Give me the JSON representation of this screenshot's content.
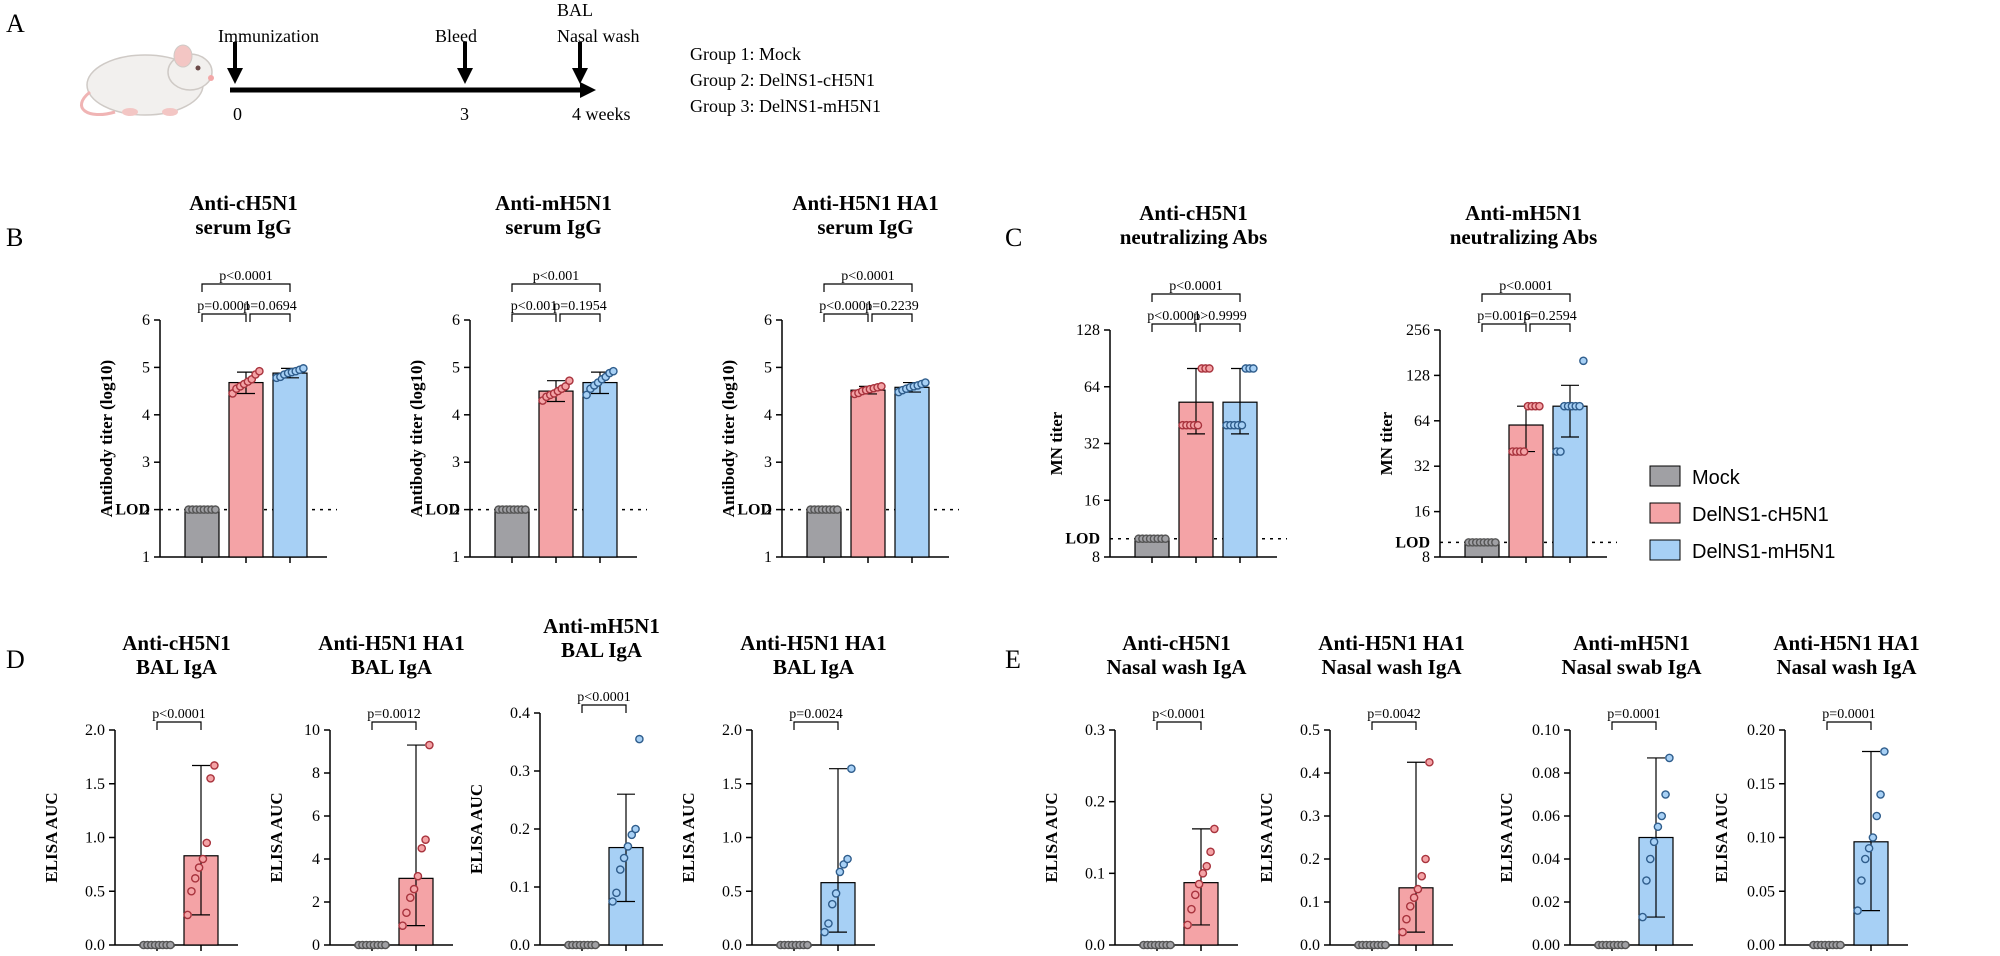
{
  "colors": {
    "mock": "#a0a0a4",
    "chN": "#f4a3a6",
    "mhN": "#a7d0f5",
    "dotMock": "#555555",
    "dotCH": "#a8333d",
    "dotMH": "#2f5d8c"
  },
  "panel_labels": {
    "A": "A",
    "B": "B",
    "C": "C",
    "D": "D",
    "E": "E"
  },
  "timeline": {
    "events": [
      "Immunization",
      "Bleed",
      "BAL",
      "Nasal wash"
    ],
    "ticks": [
      "0",
      "3",
      "4 weeks"
    ],
    "groups": [
      "Group 1: Mock",
      "Group 2: DelNS1-cH5N1",
      "Group 3: DelNS1-mH5N1"
    ]
  },
  "legend": [
    {
      "name": "Mock",
      "color": "#a0a0a4"
    },
    {
      "name": "DelNS1-cH5N1",
      "color": "#f4a3a6"
    },
    {
      "name": "DelNS1-mH5N1",
      "color": "#a7d0f5"
    }
  ],
  "chart_data": [
    {
      "type": "bar",
      "scale": "linear",
      "title": [
        "Anti-cH5N1",
        "serum IgG"
      ],
      "ylabel": "Antibody titer (log10)",
      "ylim": [
        1,
        6
      ],
      "yticks": [
        "1",
        "2",
        "3",
        "4",
        "5",
        "6"
      ],
      "lod": 2,
      "lod_label": "LOD",
      "bars": [
        {
          "group": "Mock",
          "mean": 2.0,
          "err": [
            2.0,
            2.0
          ],
          "points": [
            2,
            2,
            2,
            2,
            2,
            2,
            2,
            2
          ]
        },
        {
          "group": "DelNS1-cH5N1",
          "mean": 4.68,
          "err": [
            4.45,
            4.9
          ],
          "points": [
            4.45,
            4.55,
            4.6,
            4.65,
            4.7,
            4.75,
            4.85,
            4.92
          ]
        },
        {
          "group": "DelNS1-mH5N1",
          "mean": 4.88,
          "err": [
            4.78,
            4.98
          ],
          "points": [
            4.78,
            4.8,
            4.85,
            4.88,
            4.9,
            4.92,
            4.95,
            4.98
          ]
        }
      ],
      "pvals": [
        "p<0.0001",
        "p=0.0001",
        "p=0.0694"
      ]
    },
    {
      "type": "bar",
      "scale": "linear",
      "title": [
        "Anti-mH5N1",
        "serum IgG"
      ],
      "ylabel": "Antibody titer (log10)",
      "ylim": [
        1,
        6
      ],
      "yticks": [
        "1",
        "2",
        "3",
        "4",
        "5",
        "6"
      ],
      "lod": 2,
      "lod_label": "LOD",
      "bars": [
        {
          "group": "Mock",
          "mean": 2.0,
          "err": [
            2.0,
            2.0
          ],
          "points": [
            2,
            2,
            2,
            2,
            2,
            2,
            2,
            2
          ]
        },
        {
          "group": "DelNS1-cH5N1",
          "mean": 4.5,
          "err": [
            4.28,
            4.72
          ],
          "points": [
            4.3,
            4.38,
            4.42,
            4.45,
            4.5,
            4.55,
            4.6,
            4.72
          ]
        },
        {
          "group": "DelNS1-mH5N1",
          "mean": 4.68,
          "err": [
            4.45,
            4.9
          ],
          "points": [
            4.42,
            4.55,
            4.62,
            4.68,
            4.75,
            4.8,
            4.88,
            4.92
          ]
        }
      ],
      "pvals": [
        "p<0.001",
        "p<0.001",
        "p=0.1954"
      ]
    },
    {
      "type": "bar",
      "scale": "linear",
      "title": [
        "Anti-H5N1 HA1",
        "serum IgG"
      ],
      "ylabel": "Antibody titer (log10)",
      "ylim": [
        1,
        6
      ],
      "yticks": [
        "1",
        "2",
        "3",
        "4",
        "5",
        "6"
      ],
      "lod": 2,
      "lod_label": "LOD",
      "bars": [
        {
          "group": "Mock",
          "mean": 2.0,
          "err": [
            2.0,
            2.0
          ],
          "points": [
            2,
            2,
            2,
            2,
            2,
            2,
            2,
            2
          ]
        },
        {
          "group": "DelNS1-cH5N1",
          "mean": 4.52,
          "err": [
            4.44,
            4.6
          ],
          "points": [
            4.44,
            4.46,
            4.5,
            4.52,
            4.54,
            4.56,
            4.58,
            4.6
          ]
        },
        {
          "group": "DelNS1-mH5N1",
          "mean": 4.58,
          "err": [
            4.48,
            4.68
          ],
          "points": [
            4.48,
            4.52,
            4.55,
            4.58,
            4.6,
            4.62,
            4.65,
            4.68
          ]
        }
      ],
      "pvals": [
        "p<0.0001",
        "p<0.0001",
        "p=0.2239"
      ]
    },
    {
      "type": "bar",
      "scale": "log2",
      "title": [
        "Anti-cH5N1",
        "neutralizing Abs"
      ],
      "ylabel": "MN titer",
      "ylim": [
        8,
        128
      ],
      "yticks": [
        "8",
        "16",
        "32",
        "64",
        "128"
      ],
      "lod": 10,
      "lod_label": "LOD",
      "bars": [
        {
          "group": "Mock",
          "mean": 10,
          "err": [
            10,
            10
          ],
          "points": [
            10,
            10,
            10,
            10,
            10,
            10,
            10,
            10
          ]
        },
        {
          "group": "DelNS1-cH5N1",
          "mean": 53,
          "err": [
            36,
            80
          ],
          "points": [
            40,
            40,
            40,
            40,
            40,
            80,
            80,
            80
          ]
        },
        {
          "group": "DelNS1-mH5N1",
          "mean": 53,
          "err": [
            36,
            80
          ],
          "points": [
            40,
            40,
            40,
            40,
            40,
            80,
            80,
            80
          ]
        }
      ],
      "pvals": [
        "p<0.0001",
        "p<0.0001",
        "p>0.9999"
      ]
    },
    {
      "type": "bar",
      "scale": "log2",
      "title": [
        "Anti-mH5N1",
        "neutralizing Abs"
      ],
      "ylabel": "MN titer",
      "ylim": [
        8,
        256
      ],
      "yticks": [
        "8",
        "16",
        "32",
        "64",
        "128",
        "256"
      ],
      "lod": 10,
      "lod_label": "LOD",
      "bars": [
        {
          "group": "Mock",
          "mean": 10,
          "err": [
            10,
            10
          ],
          "points": [
            10,
            10,
            10,
            10,
            10,
            10,
            10,
            10
          ]
        },
        {
          "group": "DelNS1-cH5N1",
          "mean": 60,
          "err": [
            40,
            80
          ],
          "points": [
            40,
            40,
            40,
            40,
            80,
            80,
            80,
            80
          ]
        },
        {
          "group": "DelNS1-mH5N1",
          "mean": 80,
          "err": [
            50,
            110
          ],
          "points": [
            40,
            40,
            80,
            80,
            80,
            80,
            80,
            160
          ]
        }
      ],
      "pvals": [
        "p<0.0001",
        "p=0.0016",
        "p=0.2594"
      ]
    },
    {
      "type": "bar",
      "scale": "linear",
      "title": [
        "Anti-cH5N1",
        "BAL IgA"
      ],
      "ylabel": "ELISA AUC",
      "ylim": [
        0,
        2.0
      ],
      "yticks": [
        "0.0",
        "0.5",
        "1.0",
        "1.5",
        "2.0"
      ],
      "bars": [
        {
          "group": "Mock",
          "mean": 0,
          "err": [
            0,
            0
          ],
          "points": [
            0,
            0,
            0,
            0,
            0,
            0,
            0,
            0
          ]
        },
        {
          "group": "DelNS1-cH5N1",
          "mean": 0.83,
          "err": [
            0.28,
            1.67
          ],
          "points": [
            0.28,
            0.5,
            0.62,
            0.72,
            0.8,
            0.95,
            1.55,
            1.67
          ]
        }
      ],
      "pvals": [
        "p<0.0001"
      ]
    },
    {
      "type": "bar",
      "scale": "linear",
      "title": [
        "Anti-H5N1 HA1",
        "BAL IgA"
      ],
      "ylabel": "ELISA AUC",
      "ylim": [
        0,
        10
      ],
      "yticks": [
        "0",
        "2",
        "4",
        "6",
        "8",
        "10"
      ],
      "bars": [
        {
          "group": "Mock",
          "mean": 0,
          "err": [
            0,
            0
          ],
          "points": [
            0,
            0,
            0,
            0,
            0,
            0,
            0,
            0
          ]
        },
        {
          "group": "DelNS1-cH5N1",
          "mean": 3.1,
          "err": [
            0.9,
            9.3
          ],
          "points": [
            0.9,
            1.5,
            2.2,
            2.6,
            3.2,
            4.5,
            4.9,
            9.3
          ]
        }
      ],
      "pvals": [
        "p=0.0012"
      ]
    },
    {
      "type": "bar",
      "scale": "linear",
      "title": [
        "Anti-mH5N1",
        "BAL IgA"
      ],
      "ylabel": "ELISA AUC",
      "ylim": [
        0,
        0.4
      ],
      "yticks": [
        "0.0",
        "0.1",
        "0.2",
        "0.3",
        "0.4"
      ],
      "bars": [
        {
          "group": "Mock",
          "mean": 0,
          "err": [
            0,
            0
          ],
          "points": [
            0,
            0,
            0,
            0,
            0,
            0,
            0,
            0
          ]
        },
        {
          "group": "DelNS1-mH5N1",
          "mean": 0.168,
          "err": [
            0.075,
            0.26
          ],
          "points": [
            0.075,
            0.09,
            0.13,
            0.15,
            0.17,
            0.19,
            0.2,
            0.355
          ]
        }
      ],
      "pvals": [
        "p<0.0001"
      ]
    },
    {
      "type": "bar",
      "scale": "linear",
      "title": [
        "Anti-H5N1 HA1",
        "BAL IgA"
      ],
      "ylabel": "ELISA AUC",
      "ylim": [
        0,
        2.0
      ],
      "yticks": [
        "0.0",
        "0.5",
        "1.0",
        "1.5",
        "2.0"
      ],
      "bars": [
        {
          "group": "Mock",
          "mean": 0,
          "err": [
            0,
            0
          ],
          "points": [
            0,
            0,
            0,
            0,
            0,
            0,
            0,
            0
          ]
        },
        {
          "group": "DelNS1-mH5N1",
          "mean": 0.58,
          "err": [
            0.12,
            1.64
          ],
          "points": [
            0.12,
            0.2,
            0.38,
            0.48,
            0.68,
            0.75,
            0.8,
            1.64
          ]
        }
      ],
      "pvals": [
        "p=0.0024"
      ]
    },
    {
      "type": "bar",
      "scale": "linear",
      "title": [
        "Anti-cH5N1",
        "Nasal wash IgA"
      ],
      "ylabel": "ELISA AUC",
      "ylim": [
        0,
        0.3
      ],
      "yticks": [
        "0.0",
        "0.1",
        "0.2",
        "0.3"
      ],
      "bars": [
        {
          "group": "Mock",
          "mean": 0,
          "err": [
            0,
            0
          ],
          "points": [
            0,
            0,
            0,
            0,
            0,
            0,
            0,
            0
          ]
        },
        {
          "group": "DelNS1-cH5N1",
          "mean": 0.087,
          "err": [
            0.028,
            0.162
          ],
          "points": [
            0.028,
            0.05,
            0.07,
            0.085,
            0.1,
            0.11,
            0.13,
            0.162
          ]
        }
      ],
      "pvals": [
        "p<0.0001"
      ]
    },
    {
      "type": "bar",
      "scale": "linear",
      "title": [
        "Anti-H5N1 HA1",
        "Nasal wash IgA"
      ],
      "ylabel": "ELISA AUC",
      "ylim": [
        0,
        0.5
      ],
      "yticks": [
        "0.0",
        "0.1",
        "0.2",
        "0.3",
        "0.4",
        "0.5"
      ],
      "bars": [
        {
          "group": "Mock",
          "mean": 0,
          "err": [
            0,
            0
          ],
          "points": [
            0,
            0,
            0,
            0,
            0,
            0,
            0,
            0
          ]
        },
        {
          "group": "DelNS1-cH5N1",
          "mean": 0.133,
          "err": [
            0.03,
            0.425
          ],
          "points": [
            0.03,
            0.06,
            0.09,
            0.11,
            0.13,
            0.16,
            0.2,
            0.425
          ]
        }
      ],
      "pvals": [
        "p=0.0042"
      ]
    },
    {
      "type": "bar",
      "scale": "linear",
      "title": [
        "Anti-mH5N1",
        "Nasal swab IgA"
      ],
      "ylabel": "ELISA AUC",
      "ylim": [
        0,
        0.1
      ],
      "yticks": [
        "0.00",
        "0.02",
        "0.04",
        "0.06",
        "0.08",
        "0.10"
      ],
      "bars": [
        {
          "group": "Mock",
          "mean": 0,
          "err": [
            0,
            0
          ],
          "points": [
            0,
            0,
            0,
            0,
            0,
            0,
            0,
            0
          ]
        },
        {
          "group": "DelNS1-mH5N1",
          "mean": 0.05,
          "err": [
            0.013,
            0.087
          ],
          "points": [
            0.013,
            0.03,
            0.04,
            0.048,
            0.055,
            0.06,
            0.07,
            0.087
          ]
        }
      ],
      "pvals": [
        "p=0.0001"
      ]
    },
    {
      "type": "bar",
      "scale": "linear",
      "title": [
        "Anti-H5N1 HA1",
        "Nasal wash IgA"
      ],
      "ylabel": "ELISA AUC",
      "ylim": [
        0,
        0.2
      ],
      "yticks": [
        "0.00",
        "0.05",
        "0.10",
        "0.15",
        "0.20"
      ],
      "bars": [
        {
          "group": "Mock",
          "mean": 0,
          "err": [
            0,
            0
          ],
          "points": [
            0,
            0,
            0,
            0,
            0,
            0,
            0,
            0
          ]
        },
        {
          "group": "DelNS1-mH5N1",
          "mean": 0.096,
          "err": [
            0.032,
            0.18
          ],
          "points": [
            0.032,
            0.06,
            0.08,
            0.09,
            0.1,
            0.12,
            0.14,
            0.18
          ]
        }
      ],
      "pvals": [
        "p=0.0001"
      ]
    }
  ]
}
